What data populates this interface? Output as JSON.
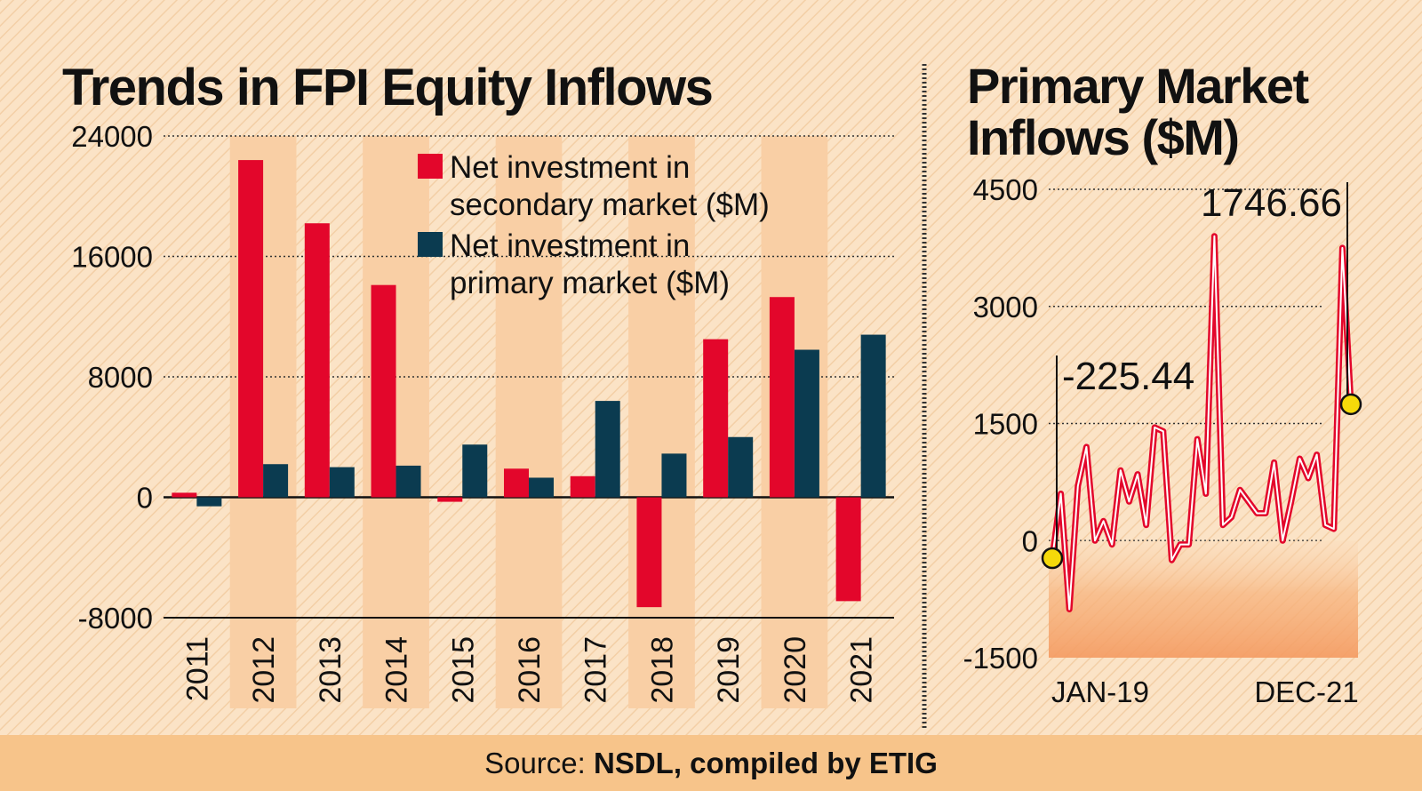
{
  "colors": {
    "background": "#fbe3c6",
    "band": "#f9cfa5",
    "secondary": "#e3062b",
    "primary": "#0b3b50",
    "footer": "#f7c48a",
    "marker": "#f5d90a"
  },
  "footer": {
    "label": "Source:",
    "source": "NSDL, compiled by ETIG"
  },
  "chart_data": [
    {
      "type": "bar",
      "title": "Trends in FPI Equity Inflows",
      "categories": [
        "2011",
        "2012",
        "2013",
        "2014",
        "2015",
        "2016",
        "2017",
        "2018",
        "2019",
        "2020",
        "2021"
      ],
      "series": [
        {
          "name": "Net investment in secondary market ($M)",
          "name_lines": [
            "Net investment in",
            "secondary market ($M)"
          ],
          "values": [
            300,
            22400,
            18200,
            14100,
            -300,
            1900,
            1400,
            -7300,
            10500,
            13300,
            -6900
          ]
        },
        {
          "name": "Net investment in primary market ($M)",
          "name_lines": [
            "Net investment in",
            "primary market ($M)"
          ],
          "values": [
            -600,
            2200,
            2000,
            2100,
            3500,
            1300,
            6400,
            2900,
            4000,
            9800,
            10800
          ]
        }
      ],
      "yticks": [
        "24000",
        "16000",
        "8000",
        "0",
        "-8000"
      ],
      "ylim": [
        -8000,
        24000
      ],
      "legend": "top-center",
      "grid": true
    },
    {
      "type": "line",
      "title": "Primary Market Inflows ($M)",
      "title_lines": [
        "Primary Market",
        "Inflows ($M)"
      ],
      "x_start": "JAN-19",
      "x_end": "DEC-21",
      "values": [
        -225.44,
        600,
        -880,
        700,
        1200,
        0,
        250,
        -50,
        900,
        500,
        850,
        200,
        1450,
        1400,
        -250,
        -50,
        -50,
        1300,
        600,
        3900,
        200,
        300,
        650,
        500,
        350,
        350,
        1000,
        0,
        500,
        1050,
        800,
        1100,
        200,
        150,
        3750,
        1746.66
      ],
      "yticks": [
        "4500",
        "3000",
        "1500",
        "0",
        "-1500"
      ],
      "ylim": [
        -1500,
        4500
      ],
      "annotations": [
        {
          "label": "-225.44",
          "point_index": 0
        },
        {
          "label": "1746.66",
          "point_index": 35
        }
      ],
      "grid": true
    }
  ]
}
